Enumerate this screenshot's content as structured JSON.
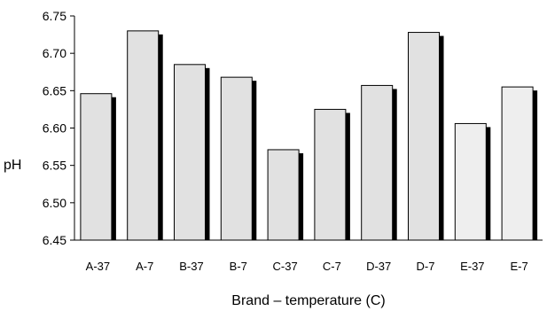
{
  "chart_data": {
    "type": "bar",
    "categories": [
      "A-37",
      "A-7",
      "B-37",
      "B-7",
      "C-37",
      "C-7",
      "D-37",
      "D-7",
      "E-37",
      "E-7"
    ],
    "values": [
      6.646,
      6.73,
      6.685,
      6.668,
      6.571,
      6.625,
      6.657,
      6.728,
      6.606,
      6.655
    ],
    "ylim": [
      6.45,
      6.75
    ],
    "yticks": [
      "6.45",
      "6.50",
      "6.55",
      "6.60",
      "6.65",
      "6.70",
      "6.75"
    ],
    "xlabel": "Brand – temperature (C)",
    "ylabel": "pH",
    "grid": false,
    "bar_colors": [
      "#e1e1e1",
      "#e1e1e1",
      "#e1e1e1",
      "#e1e1e1",
      "#e1e1e1",
      "#e1e1e1",
      "#e1e1e1",
      "#e1e1e1",
      "#eeeeee",
      "#eeeeee"
    ],
    "shadow_color": "#000000",
    "axis_color": "#000000"
  }
}
